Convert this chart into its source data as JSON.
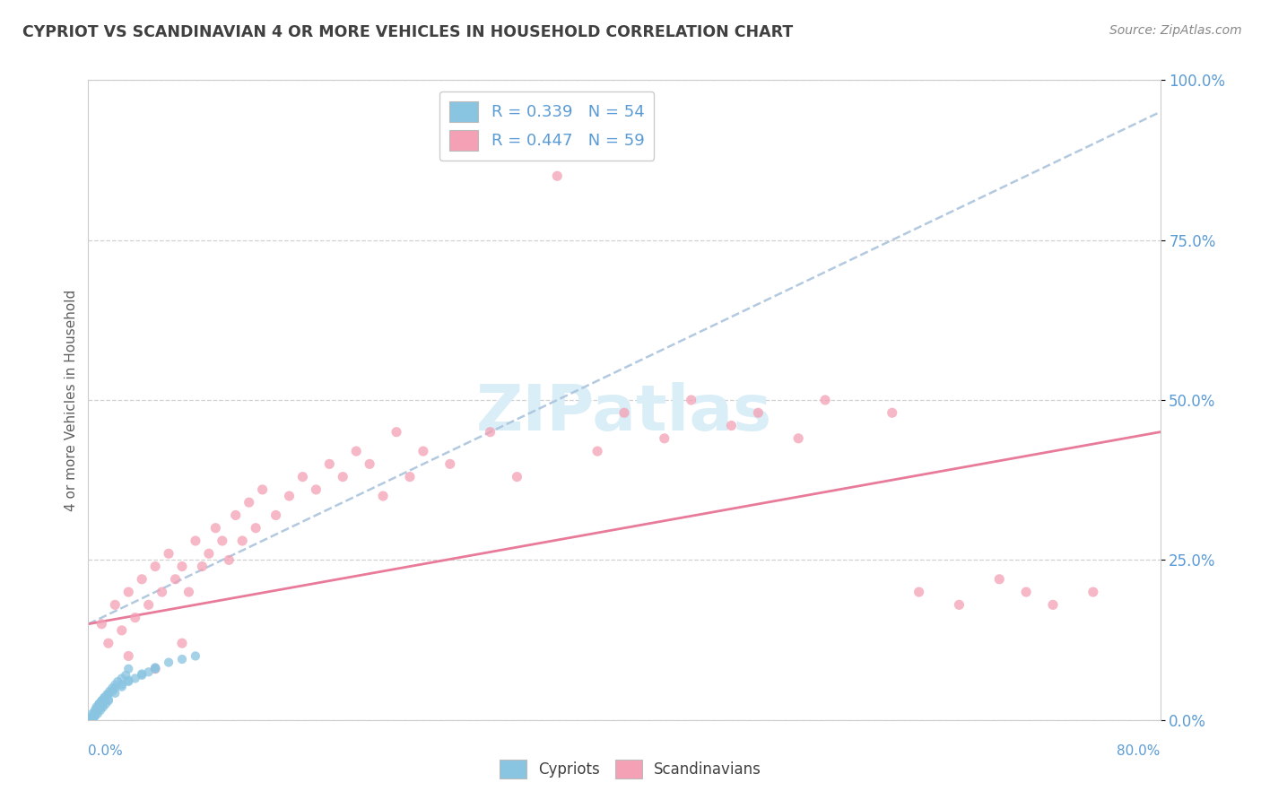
{
  "title": "CYPRIOT VS SCANDINAVIAN 4 OR MORE VEHICLES IN HOUSEHOLD CORRELATION CHART",
  "source": "Source: ZipAtlas.com",
  "ylabel": "4 or more Vehicles in Household",
  "xlim": [
    0.0,
    80.0
  ],
  "ylim": [
    0.0,
    100.0
  ],
  "ytick_labels": [
    "0.0%",
    "25.0%",
    "50.0%",
    "75.0%",
    "100.0%"
  ],
  "ytick_vals": [
    0.0,
    25.0,
    50.0,
    75.0,
    100.0
  ],
  "cypriot_color": "#89c4e1",
  "scandinavian_color": "#f4a0b5",
  "trend_color_cypriot": "#aac4dd",
  "trend_color_scandi": "#e87a9a",
  "background_color": "#ffffff",
  "grid_color": "#cccccc",
  "watermark_color": "#daeef7",
  "title_color": "#404040",
  "axis_label_color": "#5b9bd5",
  "legend_label1": "R = 0.339   N = 54",
  "legend_label2": "R = 0.447   N = 59",
  "bottom_legend1": "Cypriots",
  "bottom_legend2": "Scandinavians",
  "cypriot_x": [
    0.3,
    0.4,
    0.5,
    0.6,
    0.7,
    0.8,
    0.9,
    1.0,
    1.1,
    1.2,
    1.3,
    1.4,
    1.5,
    1.6,
    1.8,
    2.0,
    2.2,
    2.5,
    2.8,
    3.0,
    0.2,
    0.3,
    0.4,
    0.5,
    0.6,
    0.7,
    0.8,
    1.0,
    1.2,
    1.5,
    1.8,
    2.0,
    2.5,
    3.0,
    3.5,
    4.0,
    4.5,
    5.0,
    0.3,
    0.4,
    0.5,
    0.6,
    0.8,
    1.0,
    1.5,
    2.0,
    2.5,
    3.0,
    4.0,
    5.0,
    6.0,
    7.0,
    8.0,
    0.2
  ],
  "cypriot_y": [
    1.0,
    0.5,
    1.5,
    2.0,
    1.0,
    2.5,
    1.5,
    3.0,
    2.0,
    3.5,
    2.5,
    4.0,
    3.0,
    4.5,
    5.0,
    5.5,
    6.0,
    6.5,
    7.0,
    8.0,
    0.3,
    0.5,
    0.8,
    1.0,
    1.5,
    2.0,
    2.5,
    3.0,
    3.5,
    4.0,
    4.5,
    5.0,
    5.5,
    6.0,
    6.5,
    7.0,
    7.5,
    8.0,
    0.2,
    0.4,
    0.6,
    1.2,
    1.8,
    2.2,
    3.2,
    4.2,
    5.2,
    6.2,
    7.2,
    8.2,
    9.0,
    9.5,
    10.0,
    0.1
  ],
  "scandinavian_x": [
    1.0,
    1.5,
    2.0,
    2.5,
    3.0,
    3.5,
    4.0,
    4.5,
    5.0,
    5.5,
    6.0,
    6.5,
    7.0,
    7.5,
    8.0,
    8.5,
    9.0,
    9.5,
    10.0,
    10.5,
    11.0,
    11.5,
    12.0,
    12.5,
    13.0,
    14.0,
    15.0,
    16.0,
    17.0,
    18.0,
    19.0,
    20.0,
    21.0,
    22.0,
    23.0,
    24.0,
    25.0,
    27.0,
    30.0,
    32.0,
    35.0,
    38.0,
    40.0,
    43.0,
    45.0,
    48.0,
    50.0,
    53.0,
    55.0,
    60.0,
    62.0,
    65.0,
    68.0,
    70.0,
    72.0,
    75.0,
    3.0,
    5.0,
    7.0
  ],
  "scandinavian_y": [
    15.0,
    12.0,
    18.0,
    14.0,
    20.0,
    16.0,
    22.0,
    18.0,
    24.0,
    20.0,
    26.0,
    22.0,
    24.0,
    20.0,
    28.0,
    24.0,
    26.0,
    30.0,
    28.0,
    25.0,
    32.0,
    28.0,
    34.0,
    30.0,
    36.0,
    32.0,
    35.0,
    38.0,
    36.0,
    40.0,
    38.0,
    42.0,
    40.0,
    35.0,
    45.0,
    38.0,
    42.0,
    40.0,
    45.0,
    38.0,
    85.0,
    42.0,
    48.0,
    44.0,
    50.0,
    46.0,
    48.0,
    44.0,
    50.0,
    48.0,
    20.0,
    18.0,
    22.0,
    20.0,
    18.0,
    20.0,
    10.0,
    8.0,
    12.0
  ],
  "trend_cyp_x0": 0.0,
  "trend_cyp_y0": 15.0,
  "trend_cyp_x1": 80.0,
  "trend_cyp_y1": 95.0,
  "trend_scan_x0": 0.0,
  "trend_scan_y0": 15.0,
  "trend_scan_x1": 80.0,
  "trend_scan_y1": 45.0
}
